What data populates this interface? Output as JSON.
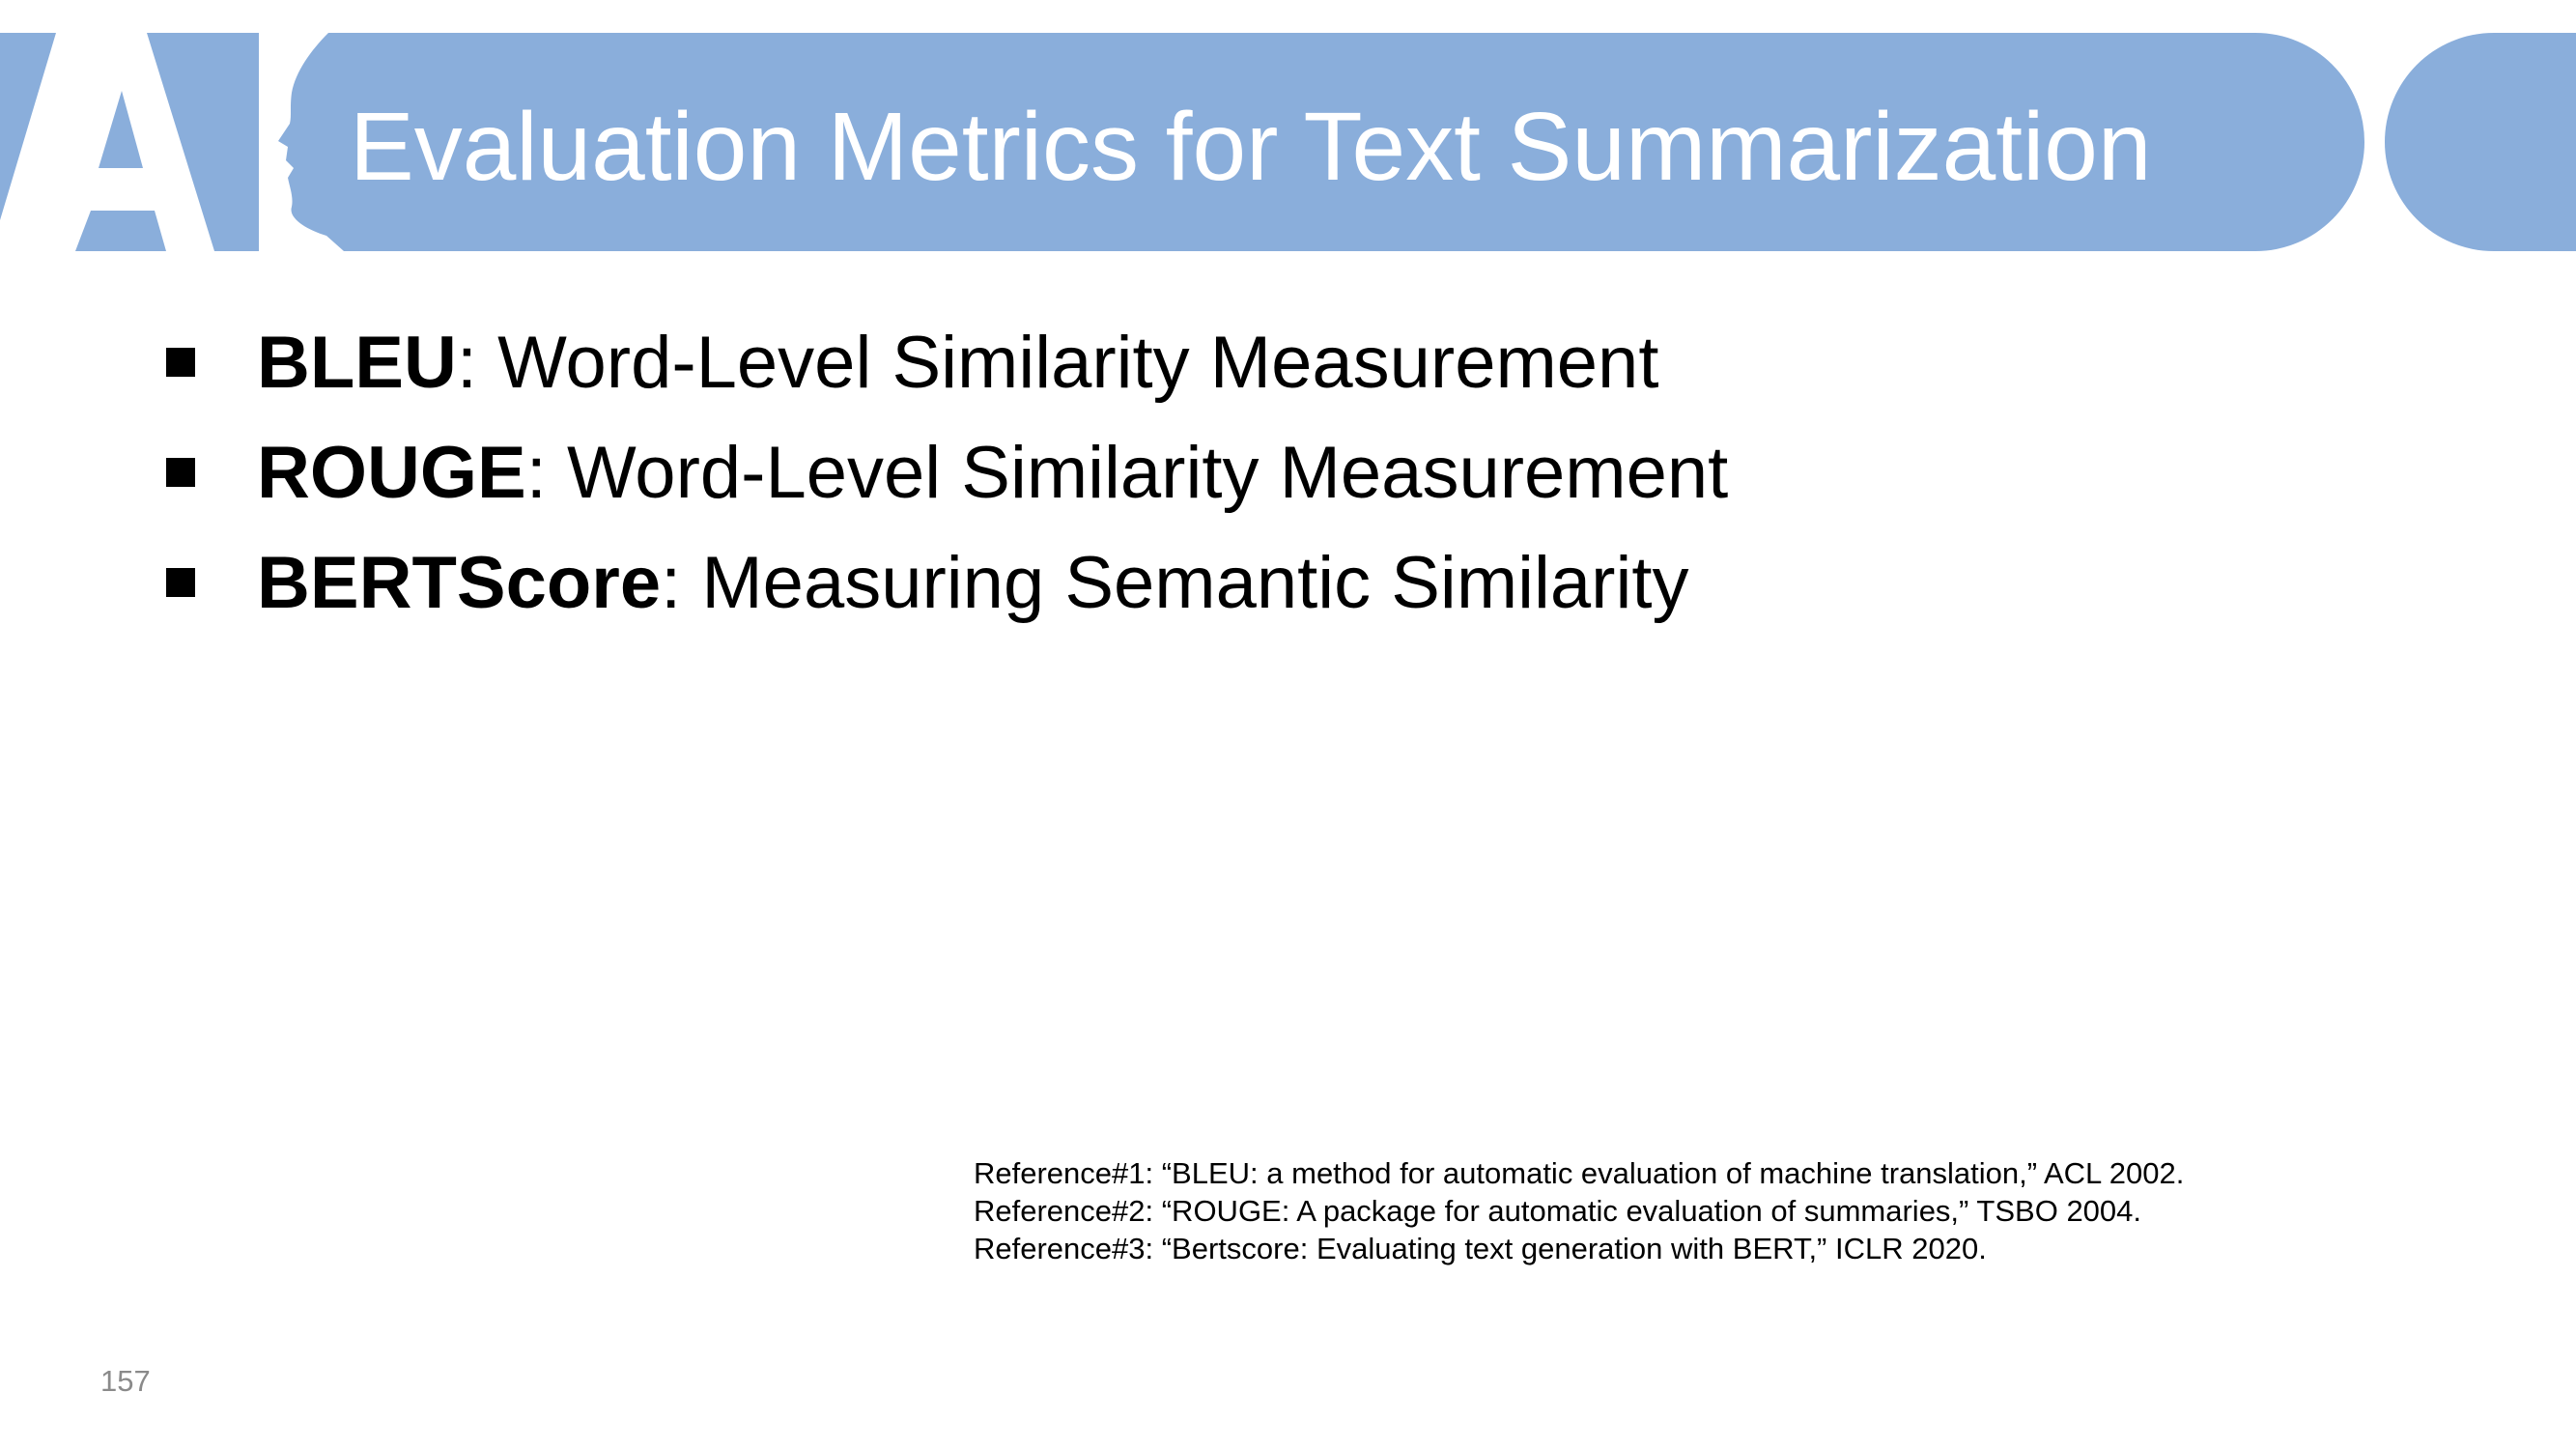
{
  "slide": {
    "logo_text": "AI",
    "title": "Evaluation Metrics for Text Summarization",
    "page_number": "157"
  },
  "bullets": [
    {
      "term": "BLEU",
      "separator": ":",
      "description": " Word-Level Similarity Measurement"
    },
    {
      "term": "ROUGE",
      "separator": ":",
      "description": " Word-Level Similarity Measurement"
    },
    {
      "term": "BERTScore",
      "separator": ":",
      "description": " Measuring Semantic Similarity"
    }
  ],
  "references": [
    "Reference#1: “BLEU: a method for automatic evaluation of machine translation,” ACL 2002.",
    "Reference#2: “ROUGE: A package for automatic evaluation of summaries,” TSBO 2004.",
    "Reference#3: “Bertscore: Evaluating text generation with BERT,” ICLR 2020."
  ],
  "colors": {
    "header_band": "#8aaedb",
    "header_text": "#ffffff",
    "body_text": "#000000",
    "page_number": "#8a8a8a"
  }
}
